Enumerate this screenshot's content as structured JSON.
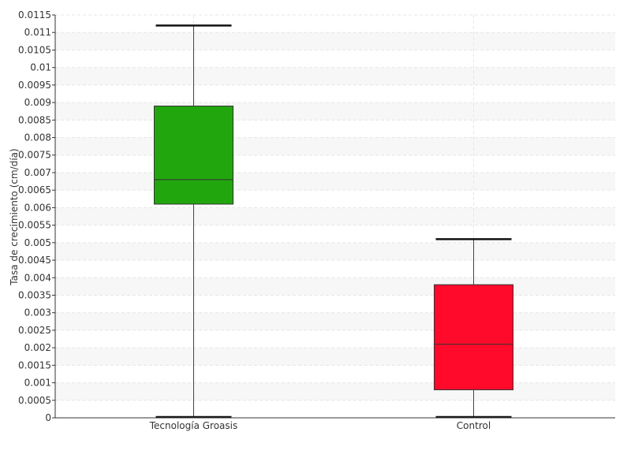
{
  "chart_data": {
    "type": "boxplot",
    "ylabel": "Tasa de crecimiento (cm/día)",
    "ylim": [
      0,
      0.0115
    ],
    "ytick_step": 0.0005,
    "yticks": [
      "0",
      "0.0005",
      "0.001",
      "0.0015",
      "0.002",
      "0.0025",
      "0.003",
      "0.0035",
      "0.004",
      "0.0045",
      "0.005",
      "0.0055",
      "0.006",
      "0.0065",
      "0.007",
      "0.0075",
      "0.008",
      "0.0085",
      "0.009",
      "0.0095",
      "0.01",
      "0.0105",
      "0.011",
      "0.0115"
    ],
    "categories": [
      "Tecnología Groasis",
      "Control"
    ],
    "boxes": [
      {
        "category": "Tecnología Groasis",
        "min": 0.0,
        "q1": 0.0061,
        "median": 0.0068,
        "q3": 0.0089,
        "max": 0.0112,
        "color": "#22a60e"
      },
      {
        "category": "Control",
        "min": 0.0,
        "q1": 0.0008,
        "median": 0.0021,
        "q3": 0.0038,
        "max": 0.0051,
        "color": "#ff0a2a"
      }
    ],
    "grid": true,
    "grid_bands": true
  }
}
